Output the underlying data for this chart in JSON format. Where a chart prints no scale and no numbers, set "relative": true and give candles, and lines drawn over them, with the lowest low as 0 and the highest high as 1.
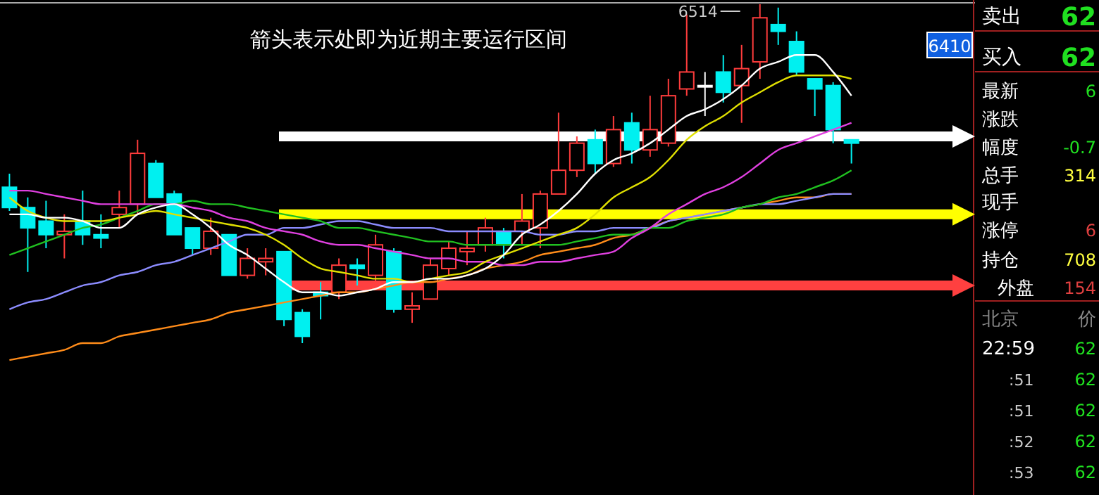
{
  "chart_data": [
    {
      "type": "candlestick",
      "title": "箭头表示处即为近期主要运行区间",
      "relative": true,
      "categories": [
        null,
        null,
        null,
        null,
        null,
        null,
        null,
        null,
        null,
        null,
        null,
        null,
        null,
        null,
        null,
        null,
        null,
        null,
        null,
        null,
        null,
        null,
        null,
        null,
        null,
        null,
        null,
        null,
        null,
        null,
        null,
        null,
        null,
        null,
        null,
        null,
        null,
        null,
        null,
        null,
        null,
        null,
        null,
        null,
        null,
        null,
        null
      ],
      "ohlc": [
        [
          0.46,
          0.5,
          0.39,
          0.4
        ],
        [
          0.4,
          0.43,
          0.21,
          0.34
        ],
        [
          0.36,
          0.42,
          0.28,
          0.32
        ],
        [
          0.32,
          0.38,
          0.25,
          0.33
        ],
        [
          0.36,
          0.45,
          0.29,
          0.32
        ],
        [
          0.32,
          0.38,
          0.28,
          0.31
        ],
        [
          0.38,
          0.45,
          0.34,
          0.4
        ],
        [
          0.41,
          0.6,
          0.38,
          0.56
        ],
        [
          0.53,
          0.54,
          0.43,
          0.43
        ],
        [
          0.44,
          0.45,
          0.32,
          0.32
        ],
        [
          0.34,
          0.34,
          0.26,
          0.28
        ],
        [
          0.28,
          0.37,
          0.26,
          0.33
        ],
        [
          0.32,
          0.32,
          0.2,
          0.2
        ],
        [
          0.2,
          0.28,
          0.19,
          0.25
        ],
        [
          0.24,
          0.28,
          0.2,
          0.25
        ],
        [
          0.27,
          0.27,
          0.05,
          0.07
        ],
        [
          0.09,
          0.1,
          0,
          0.02
        ],
        [
          0.15,
          0.18,
          0.07,
          0.14
        ],
        [
          0.15,
          0.25,
          0.13,
          0.23
        ],
        [
          0.23,
          0.25,
          0.17,
          0.22
        ],
        [
          0.2,
          0.32,
          0.18,
          0.29
        ],
        [
          0.27,
          0.28,
          0.09,
          0.1
        ],
        [
          0.1,
          0.15,
          0.06,
          0.11
        ],
        [
          0.13,
          0.25,
          0.13,
          0.23
        ],
        [
          0.22,
          0.3,
          0.2,
          0.28
        ],
        [
          0.27,
          0.33,
          0.23,
          0.28
        ],
        [
          0.29,
          0.37,
          0.27,
          0.34
        ],
        [
          0.33,
          0.34,
          0.25,
          0.29
        ],
        [
          0.33,
          0.44,
          0.29,
          0.36
        ],
        [
          0.34,
          0.45,
          0.28,
          0.44
        ],
        [
          0.44,
          0.68,
          0.44,
          0.51
        ],
        [
          0.51,
          0.61,
          0.49,
          0.59
        ],
        [
          0.6,
          0.63,
          0.5,
          0.53
        ],
        [
          0.53,
          0.67,
          0.52,
          0.63
        ],
        [
          0.65,
          0.68,
          0.53,
          0.57
        ],
        [
          0.57,
          0.73,
          0.55,
          0.63
        ],
        [
          0.59,
          0.78,
          0.58,
          0.73
        ],
        [
          0.75,
          0.97,
          0.73,
          0.8
        ],
        [
          0.76,
          0.8,
          0.67,
          0.76
        ],
        [
          0.8,
          0.85,
          0.71,
          0.74
        ],
        [
          0.76,
          0.88,
          0.65,
          0.81
        ],
        [
          0.83,
          1,
          0.78,
          0.96
        ],
        [
          0.94,
          0.99,
          0.88,
          0.92
        ],
        [
          0.89,
          0.92,
          0.79,
          0.8
        ],
        [
          0.78,
          0.78,
          0.67,
          0.75
        ],
        [
          0.76,
          0.77,
          0.59,
          0.63
        ],
        [
          0.6,
          0.6,
          0.53,
          0.59
        ]
      ],
      "series": [
        {
          "type": "line",
          "color": "#ff8c1a",
          "values": [
            -0.05,
            -0.04,
            -0.03,
            -0.02,
            0,
            0,
            0.02,
            0.03,
            0.04,
            0.05,
            0.06,
            0.07,
            0.09,
            0.1,
            0.11,
            0.12,
            0.13,
            0.14,
            0.15,
            0.15,
            0.16,
            0.17,
            0.18,
            0.18,
            0.19,
            0.2,
            0.22,
            0.23,
            0.24,
            0.26,
            0.27,
            0.28,
            0.29,
            0.31,
            0.32,
            0.34,
            0.36,
            0.37,
            0.38,
            0.39,
            0.4,
            0.41,
            0.42,
            0.43,
            0.43,
            0.44,
            0.44
          ]
        },
        {
          "type": "line",
          "color": "#8c8cff",
          "values": [
            0.1,
            0.12,
            0.13,
            0.15,
            0.17,
            0.18,
            0.2,
            0.21,
            0.23,
            0.24,
            0.26,
            0.28,
            0.3,
            0.32,
            0.32,
            0.34,
            0.34,
            0.35,
            0.36,
            0.36,
            0.35,
            0.34,
            0.34,
            0.34,
            0.33,
            0.33,
            0.33,
            0.33,
            0.33,
            0.32,
            0.32,
            0.33,
            0.33,
            0.34,
            0.34,
            0.34,
            0.36,
            0.37,
            0.38,
            0.39,
            0.4,
            0.41,
            0.41,
            0.42,
            0.43,
            0.44,
            0.44
          ]
        },
        {
          "type": "line",
          "color": "#20c020",
          "values": [
            0.26,
            0.28,
            0.3,
            0.32,
            0.34,
            0.35,
            0.37,
            0.39,
            0.41,
            0.41,
            0.42,
            0.41,
            0.41,
            0.4,
            0.39,
            0.38,
            0.37,
            0.36,
            0.34,
            0.34,
            0.33,
            0.32,
            0.31,
            0.3,
            0.3,
            0.29,
            0.29,
            0.29,
            0.29,
            0.29,
            0.29,
            0.3,
            0.31,
            0.32,
            0.32,
            0.34,
            0.34,
            0.36,
            0.37,
            0.38,
            0.4,
            0.41,
            0.43,
            0.44,
            0.46,
            0.48,
            0.51
          ]
        },
        {
          "type": "line",
          "color": "#e040e0",
          "values": [
            0.45,
            0.45,
            0.44,
            0.43,
            0.42,
            0.41,
            0.41,
            0.41,
            0.41,
            0.41,
            0.4,
            0.39,
            0.37,
            0.36,
            0.34,
            0.33,
            0.32,
            0.3,
            0.29,
            0.29,
            0.28,
            0.27,
            0.26,
            0.25,
            0.25,
            0.24,
            0.24,
            0.23,
            0.23,
            0.24,
            0.24,
            0.25,
            0.26,
            0.27,
            0.31,
            0.34,
            0.38,
            0.41,
            0.44,
            0.46,
            0.49,
            0.53,
            0.57,
            0.59,
            0.61,
            0.63,
            0.65
          ]
        },
        {
          "type": "line",
          "color": "#e0e000",
          "values": [
            0.43,
            0.39,
            0.37,
            0.36,
            0.36,
            0.36,
            0.37,
            0.38,
            0.39,
            0.38,
            0.37,
            0.36,
            0.35,
            0.34,
            0.32,
            0.29,
            0.25,
            0.22,
            0.21,
            0.2,
            0.19,
            0.19,
            0.18,
            0.19,
            0.2,
            0.21,
            0.24,
            0.26,
            0.28,
            0.3,
            0.32,
            0.34,
            0.38,
            0.43,
            0.46,
            0.49,
            0.54,
            0.6,
            0.64,
            0.67,
            0.71,
            0.74,
            0.77,
            0.79,
            0.79,
            0.79,
            0.78
          ]
        },
        {
          "type": "line",
          "color": "#ffffff",
          "values": [
            0.38,
            0.38,
            0.37,
            0.37,
            0.36,
            0.34,
            0.34,
            0.38,
            0.4,
            0.41,
            0.38,
            0.34,
            0.29,
            0.26,
            0.22,
            0.18,
            0.15,
            0.15,
            0.14,
            0.15,
            0.16,
            0.18,
            0.18,
            0.19,
            0.19,
            0.2,
            0.22,
            0.26,
            0.32,
            0.35,
            0.39,
            0.44,
            0.5,
            0.54,
            0.56,
            0.59,
            0.63,
            0.67,
            0.69,
            0.72,
            0.76,
            0.81,
            0.83,
            0.85,
            0.85,
            0.8,
            0.73
          ]
        }
      ],
      "ref_lines": [
        {
          "axis": "y",
          "value": 0.61,
          "color": "#ffffff"
        },
        {
          "axis": "y",
          "value": 0.38,
          "color": "#ffff00"
        },
        {
          "axis": "y",
          "value": 0.17,
          "color": "#ff4040"
        }
      ],
      "annotations": [
        "6514",
        "6410"
      ]
    },
    {
      "type": "other",
      "annotations": [
        "卖出",
        "62",
        "买入",
        "62",
        "最新",
        "6",
        "涨跌",
        "幅度",
        "-0.7",
        "总手",
        "314",
        "现手",
        "涨停",
        "6",
        "持仓",
        "708",
        "外盘",
        "154",
        "北京",
        "价",
        "22:59",
        "62",
        ":51",
        "62",
        ":51",
        "62",
        ":52",
        "62",
        ":53",
        "62"
      ]
    }
  ]
}
